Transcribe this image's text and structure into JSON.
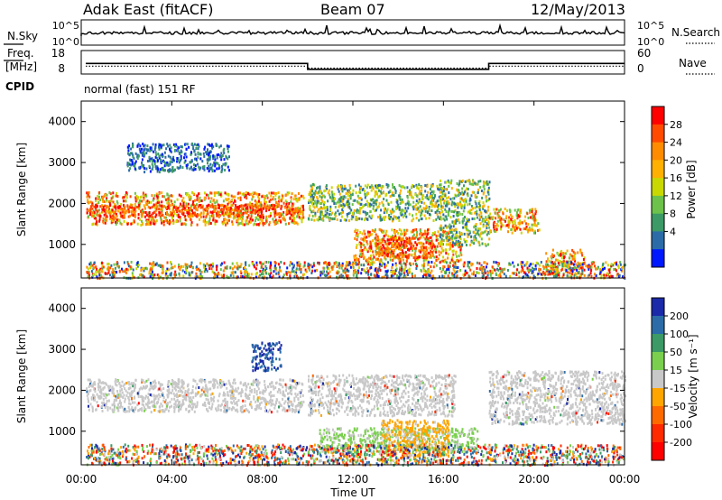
{
  "header": {
    "radar": "Adak East (fitACF)",
    "beam": "Beam 07",
    "date": "12/May/2013"
  },
  "noise_panel": {
    "left_label": "N.Sky",
    "left_ticks": [
      "10^5",
      "10^0"
    ],
    "right_ticks": [
      "10^5",
      "10^0"
    ],
    "right_label": "N.Search"
  },
  "freq_panel": {
    "left_label_top": "Freq.",
    "left_label_bottom": "[MHz]",
    "left_ticks": [
      "18",
      "8"
    ],
    "right_ticks": [
      "60",
      "0"
    ],
    "right_label": "Nave",
    "cpid_label": "CPID",
    "cpid_text": "normal (fast) 151 RF"
  },
  "chart_data": [
    {
      "type": "heatmap",
      "name": "power",
      "ylabel": "Slant Range [km]",
      "yticks": [
        "4000",
        "3000",
        "2000",
        "1000"
      ],
      "ylim": [
        180,
        4500
      ],
      "xlim": [
        0,
        24
      ],
      "colorbar": {
        "label": "Power [dB]",
        "ticks": [
          "28",
          "24",
          "20",
          "16",
          "12",
          "8",
          "4"
        ],
        "colors": [
          "#ff0000",
          "#ff4a00",
          "#ff8c00",
          "#ffb000",
          "#c9d800",
          "#6cc24a",
          "#3c9a66",
          "#2b6ca8",
          "#0018ff"
        ]
      },
      "bands": [
        {
          "t0": 0.2,
          "t1": 9.8,
          "r0": 1500,
          "r1": 2300,
          "level": "high"
        },
        {
          "t0": 0.2,
          "t1": 9.8,
          "r0": 1700,
          "r1": 2000,
          "level": "peak"
        },
        {
          "t0": 10.0,
          "t1": 15.8,
          "r0": 1600,
          "r1": 2500,
          "level": "mid"
        },
        {
          "t0": 12.0,
          "t1": 16.8,
          "r0": 600,
          "r1": 1400,
          "level": "high"
        },
        {
          "t0": 13.0,
          "t1": 15.5,
          "r0": 700,
          "r1": 1200,
          "level": "peak"
        },
        {
          "t0": 15.8,
          "t1": 18.0,
          "r0": 1000,
          "r1": 2600,
          "level": "mid"
        },
        {
          "t0": 18.0,
          "t1": 20.2,
          "r0": 1300,
          "r1": 1900,
          "level": "high"
        },
        {
          "t0": 20.5,
          "t1": 22.2,
          "r0": 300,
          "r1": 900,
          "level": "high"
        },
        {
          "t0": 0.2,
          "t1": 24.0,
          "r0": 200,
          "r1": 600,
          "level": "mixed"
        },
        {
          "t0": 2.0,
          "t1": 6.5,
          "r0": 2800,
          "r1": 3500,
          "level": "low"
        }
      ]
    },
    {
      "type": "heatmap",
      "name": "velocity",
      "ylabel": "Slant Range [km]",
      "xlabel": "Time UT",
      "xticks": [
        "00:00",
        "04:00",
        "08:00",
        "12:00",
        "16:00",
        "20:00",
        "00:00"
      ],
      "yticks": [
        "4000",
        "3000",
        "2000",
        "1000"
      ],
      "ylim": [
        180,
        4500
      ],
      "xlim": [
        0,
        24
      ],
      "colorbar": {
        "label": "Velocity [m s⁻¹]",
        "ticks": [
          "200",
          "100",
          "50",
          "15",
          "-15",
          "-50",
          "-100",
          "-200"
        ],
        "colors": [
          "#1a2aa8",
          "#2b6ca8",
          "#3c9a66",
          "#7ad04e",
          "#c8c8c8",
          "#ffa500",
          "#ff6a00",
          "#ff2a00",
          "#ff0000"
        ]
      },
      "bands": [
        {
          "t0": 0.2,
          "t1": 9.8,
          "r0": 1500,
          "r1": 2300,
          "level": "gray"
        },
        {
          "t0": 10.0,
          "t1": 16.5,
          "r0": 1400,
          "r1": 2400,
          "level": "gray"
        },
        {
          "t0": 10.5,
          "t1": 17.5,
          "r0": 500,
          "r1": 1100,
          "level": "green"
        },
        {
          "t0": 13.2,
          "t1": 16.2,
          "r0": 400,
          "r1": 1300,
          "level": "orange"
        },
        {
          "t0": 18.0,
          "t1": 24.0,
          "r0": 1200,
          "r1": 2500,
          "level": "gray"
        },
        {
          "t0": 7.5,
          "t1": 8.8,
          "r0": 2500,
          "r1": 3200,
          "level": "blue"
        },
        {
          "t0": 0.2,
          "t1": 24.0,
          "r0": 200,
          "r1": 700,
          "level": "mixed"
        }
      ]
    }
  ],
  "freq_series": {
    "segments": [
      {
        "t0": 0.2,
        "t1": 10.0,
        "freq": 12.5
      },
      {
        "t0": 10.0,
        "t1": 18.0,
        "freq": 10.0
      },
      {
        "t0": 18.0,
        "t1": 24.0,
        "freq": 12.5
      }
    ],
    "nave_segments": [
      {
        "t0": 0.2,
        "t1": 10.0,
        "nave": 20
      },
      {
        "t0": 10.0,
        "t1": 18.0,
        "nave": 15
      },
      {
        "t0": 18.0,
        "t1": 24.0,
        "nave": 20
      }
    ]
  }
}
